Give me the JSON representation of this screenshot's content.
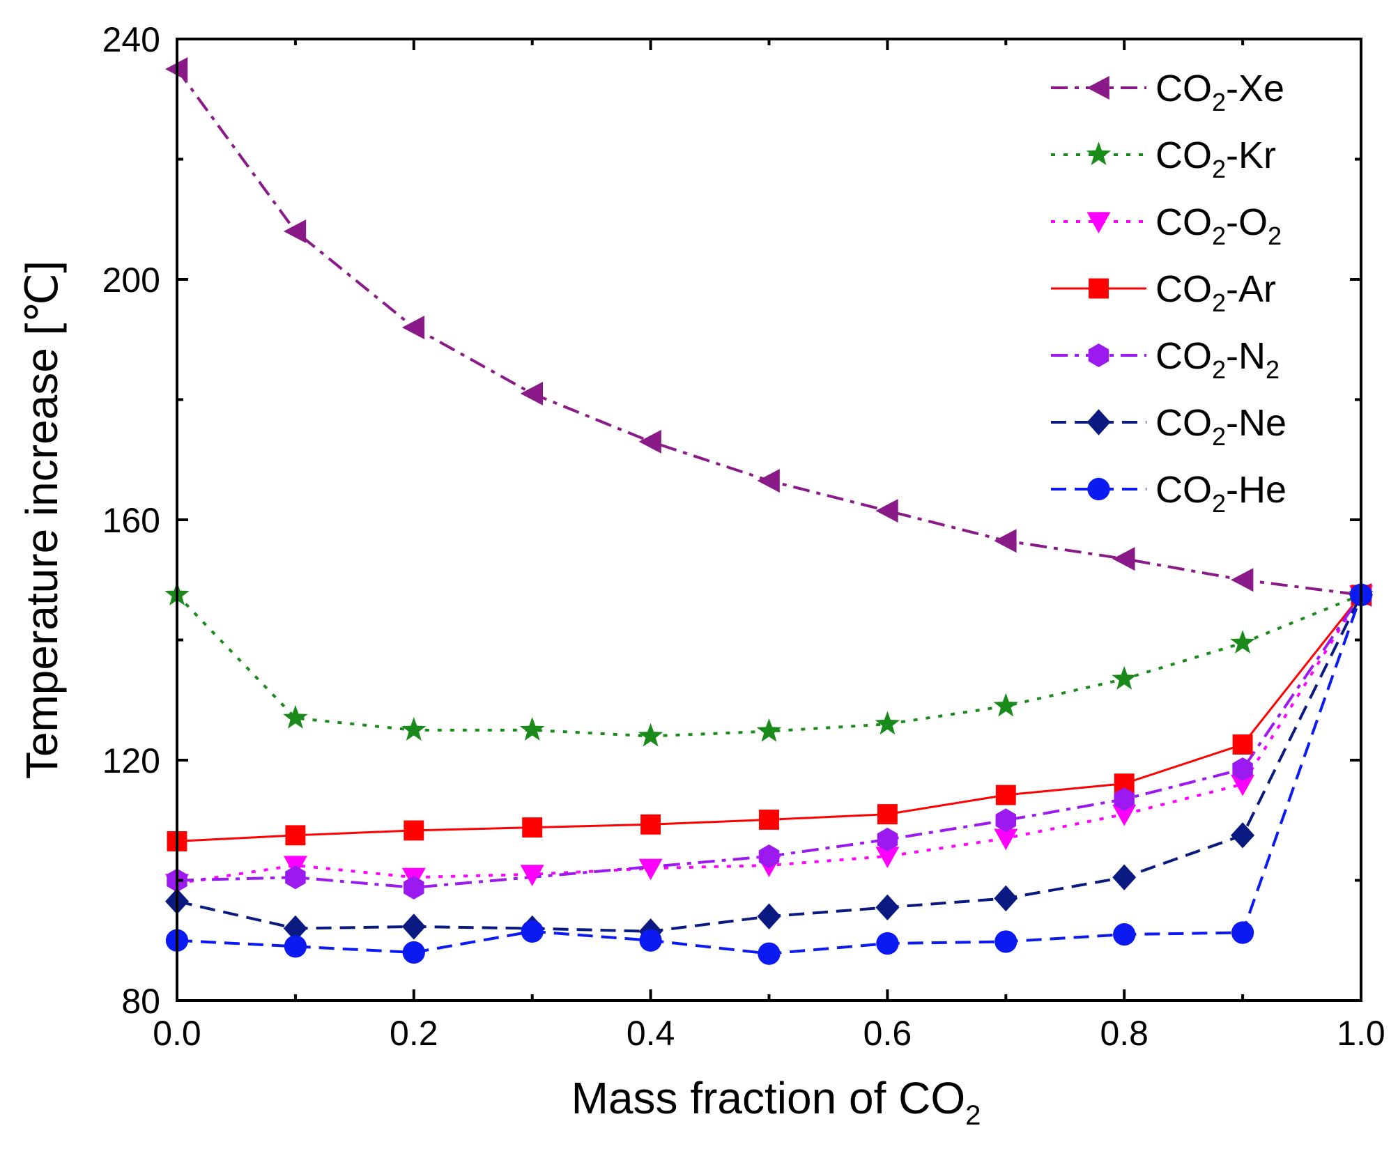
{
  "chart_data": {
    "type": "line",
    "xlabel": "Mass fraction of CO",
    "xlabel_sub": "2",
    "ylabel": "Temperature increase [℃]",
    "xlim": [
      0.0,
      1.0
    ],
    "ylim": [
      80,
      240
    ],
    "x_ticks": [
      "0.0",
      "0.2",
      "0.4",
      "0.6",
      "0.8",
      "1.0"
    ],
    "y_ticks": [
      "80",
      "120",
      "160",
      "200",
      "240"
    ],
    "legend_position": "top-right",
    "x": [
      0.0,
      0.1,
      0.2,
      0.3,
      0.4,
      0.5,
      0.6,
      0.7,
      0.8,
      0.9,
      1.0
    ],
    "series": [
      {
        "name": "CO2-Xe",
        "label_main": "CO",
        "label_sub": "2",
        "label_tail": "-Xe",
        "label_tail_sub": "",
        "color": "#8B1A89",
        "marker": "triangle-left",
        "dash": "dashdot",
        "values": [
          235,
          208,
          192,
          181,
          173,
          166.5,
          161.5,
          156.5,
          153.5,
          150,
          147.5
        ]
      },
      {
        "name": "CO2-Kr",
        "label_main": "CO",
        "label_sub": "2",
        "label_tail": "-Kr",
        "label_tail_sub": "",
        "color": "#1A8A1A",
        "marker": "star",
        "dash": "dot",
        "values": [
          147.5,
          127,
          125,
          125,
          124,
          124.8,
          126,
          129,
          133.5,
          139.5,
          147.5
        ]
      },
      {
        "name": "CO2-O2",
        "label_main": "CO",
        "label_sub": "2",
        "label_tail": "-O",
        "label_tail_sub": "2",
        "color": "#FF00FF",
        "marker": "triangle-down",
        "dash": "dot",
        "values": [
          99.5,
          102.5,
          100.5,
          101,
          102,
          102.5,
          104,
          107,
          111,
          116,
          147.5
        ]
      },
      {
        "name": "CO2-Ar",
        "label_main": "CO",
        "label_sub": "2",
        "label_tail": "-Ar",
        "label_tail_sub": "",
        "color": "#FF0000",
        "marker": "square",
        "dash": "solid",
        "values": [
          106.5,
          107.5,
          108.3,
          108.8,
          109.3,
          110.1,
          111,
          114.2,
          116.1,
          122.6,
          147.5
        ]
      },
      {
        "name": "CO2-N2",
        "label_main": "CO",
        "label_sub": "2",
        "label_tail": "-N",
        "label_tail_sub": "2",
        "color": "#9A1AF0",
        "marker": "hexagon",
        "dash": "dashdot",
        "values": [
          100,
          100.5,
          98.8,
          null,
          null,
          104,
          106.8,
          110,
          113.5,
          118.5,
          147.5
        ]
      },
      {
        "name": "CO2-Ne",
        "label_main": "CO",
        "label_sub": "2",
        "label_tail": "-Ne",
        "label_tail_sub": "",
        "color": "#0A1A80",
        "marker": "diamond",
        "dash": "dash",
        "values": [
          96.5,
          92,
          92.3,
          92,
          91.5,
          94,
          95.5,
          97,
          100.5,
          107.5,
          147.5
        ]
      },
      {
        "name": "CO2-He",
        "label_main": "CO",
        "label_sub": "2",
        "label_tail": "-He",
        "label_tail_sub": "",
        "color": "#0A1AF0",
        "marker": "circle",
        "dash": "dash",
        "values": [
          90,
          89,
          88,
          91.5,
          90,
          87.8,
          89.5,
          89.8,
          91,
          91.3,
          147.5
        ]
      }
    ]
  }
}
